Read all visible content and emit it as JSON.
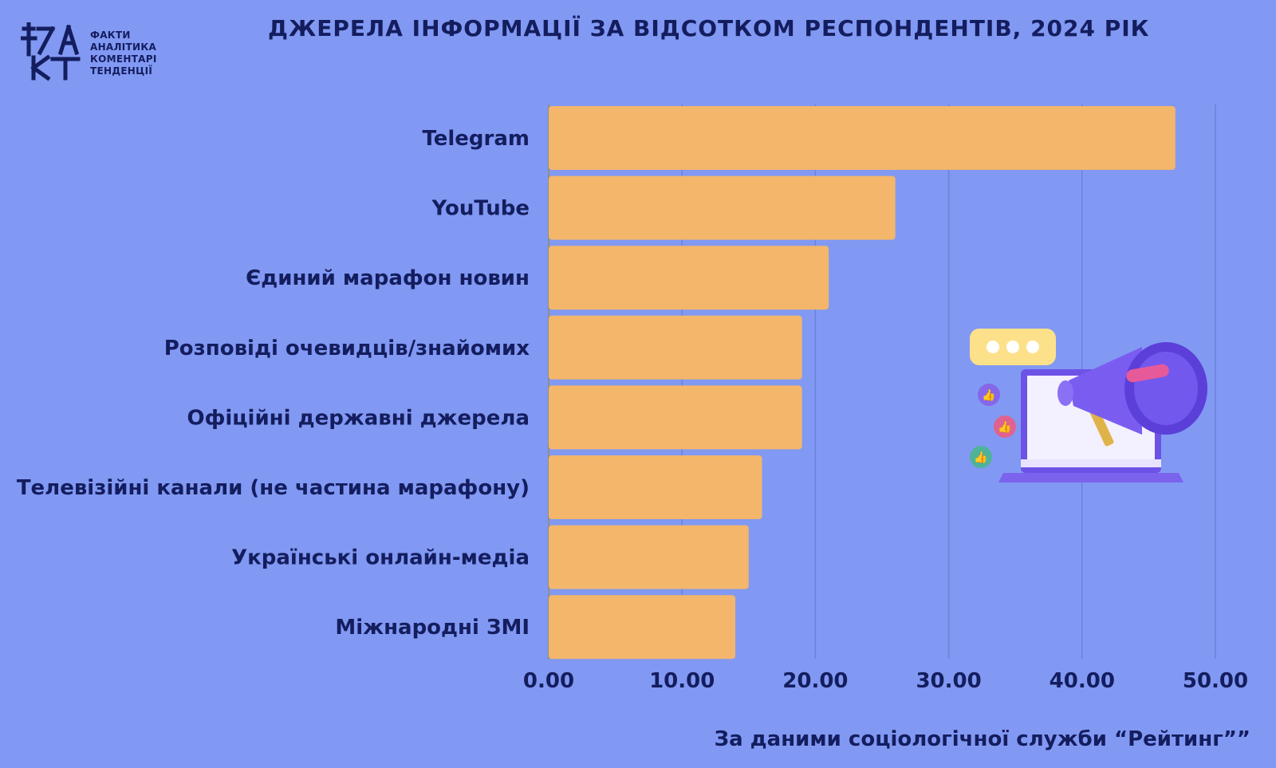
{
  "logo": {
    "icon": "fakt-logo-icon",
    "lines": [
      "ФАКТИ",
      "АНАЛІТИКА",
      "КОМЕНТАРІ",
      "ТЕНДЕНЦІЇ"
    ]
  },
  "title": "ДЖЕРЕЛА ІНФОРМАЦІЇ ЗА ВІДСОТКОМ РЕСПОНДЕНТІВ, 2024 РІК",
  "source": "За даними соціологічної служби “Рейтинг””",
  "colors": {
    "background": "#8199f3",
    "bar": "#f3b66b",
    "text": "#141d5e",
    "grid": "#6a82d8"
  },
  "illustration": {
    "icons": [
      "chat-bubble-icon",
      "megaphone-icon",
      "laptop-icon",
      "thumbs-up-icon"
    ]
  },
  "chart_data": {
    "type": "bar",
    "orientation": "horizontal",
    "categories": [
      "Telegram",
      "YouTube",
      "Єдиний марафон новин",
      "Розповіді очевидців/знайомих",
      "Офіційні державні джерела",
      "Телевізійні канали (не частина марафону)",
      "Українські онлайн-медіа",
      "Міжнародні ЗМІ"
    ],
    "values": [
      47,
      26,
      21,
      19,
      19,
      16,
      15,
      14
    ],
    "xticks": [
      "0.00",
      "10.00",
      "20.00",
      "30.00",
      "40.00",
      "50.00"
    ],
    "xlim": [
      0,
      50
    ],
    "grid": "vertical",
    "legend": "none"
  }
}
